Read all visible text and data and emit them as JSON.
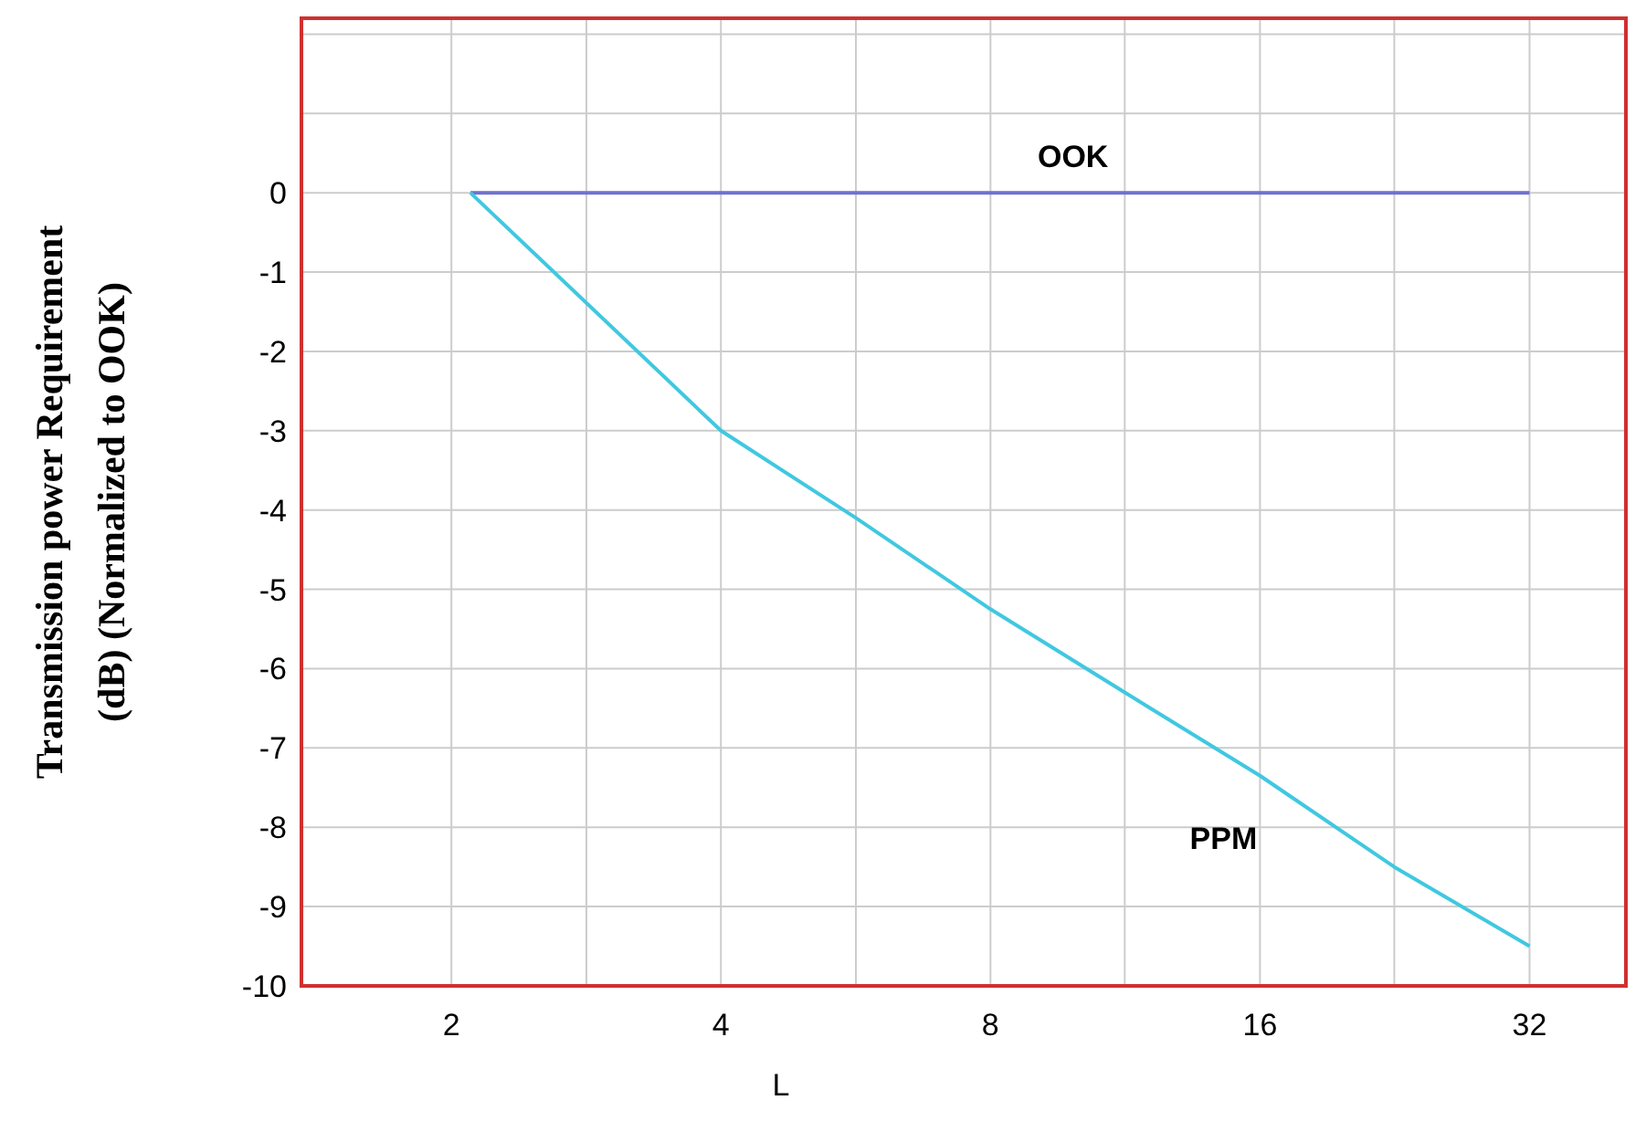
{
  "chart_data": {
    "type": "line",
    "xlabel": "L",
    "ylabel": "Transmission power Requirement\n(dB)  (Normalized to OOK)",
    "log": "x",
    "xlim": [
      1.36,
      41
    ],
    "ylim": [
      -10,
      2.2
    ],
    "xticks": [
      2,
      {
        "value": 2.83,
        "label": null
      },
      4,
      {
        "value": 5.66,
        "label": null
      },
      8,
      {
        "value": 11.3,
        "label": null
      },
      16,
      {
        "value": 22.6,
        "label": null
      },
      32
    ],
    "yticks": [
      -10,
      -9,
      -8,
      -7,
      -6,
      -5,
      -4,
      -3,
      -2,
      -1,
      0,
      {
        "value": 1,
        "label": null
      },
      {
        "value": 2,
        "label": null
      }
    ],
    "grid": true,
    "series": [
      {
        "name": "OOK",
        "color": "#7070d0",
        "x": [
          2.1,
          32
        ],
        "values": [
          0,
          0
        ]
      },
      {
        "name": "PPM",
        "color": "#40c8e0",
        "x": [
          2.1,
          4,
          5.66,
          8,
          11.3,
          16,
          22.6,
          32
        ],
        "values": [
          0,
          -3,
          -4.1,
          -5.25,
          -6.3,
          -7.35,
          -8.5,
          -9.5
        ]
      }
    ]
  }
}
